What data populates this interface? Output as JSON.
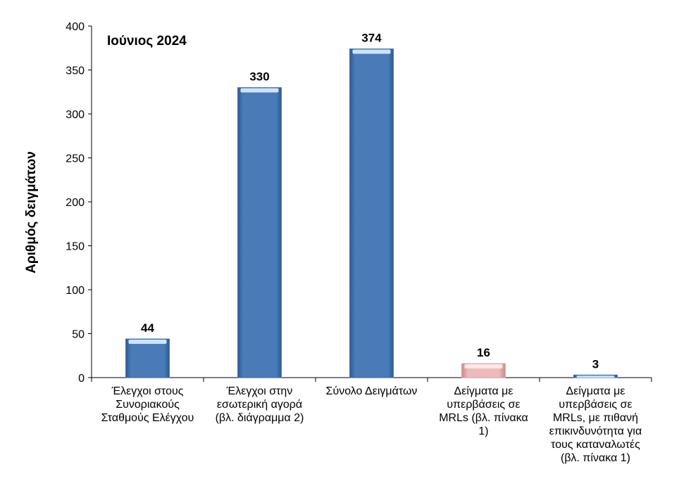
{
  "chart_data": {
    "type": "bar",
    "title": "Ιούνιος 2024",
    "ylabel": "Αριθμός δειγμάτων",
    "xlabel": "",
    "categories": [
      "Έλεγχοι στους\nΣυνοριακούς\nΣταθμούς Ελέγχου",
      "Έλεγχοι στην\nεσωτερική αγορά\n(βλ. διάγραμμα 2)",
      "Σύνολο Δειγμάτων",
      "Δείγματα με\nυπερβάσεις σε\nMRLs (βλ. πίνακα\n1)",
      "Δείγματα με\nυπερβάσεις σε\nMRLs, με πιθανή\nεπικινδυνότητα για\nτους καταναλωτές\n(βλ. πίνακα 1)"
    ],
    "values": [
      44,
      330,
      374,
      16,
      3
    ],
    "bar_colors": [
      "#4a7ab8",
      "#4a7ab8",
      "#4a7ab8",
      "#e8b3b3",
      "#4a7ab8"
    ],
    "ylim": [
      0,
      400
    ],
    "yticks": [
      0,
      50,
      100,
      150,
      200,
      250,
      300,
      350,
      400
    ],
    "grid": false,
    "legend": "none"
  }
}
